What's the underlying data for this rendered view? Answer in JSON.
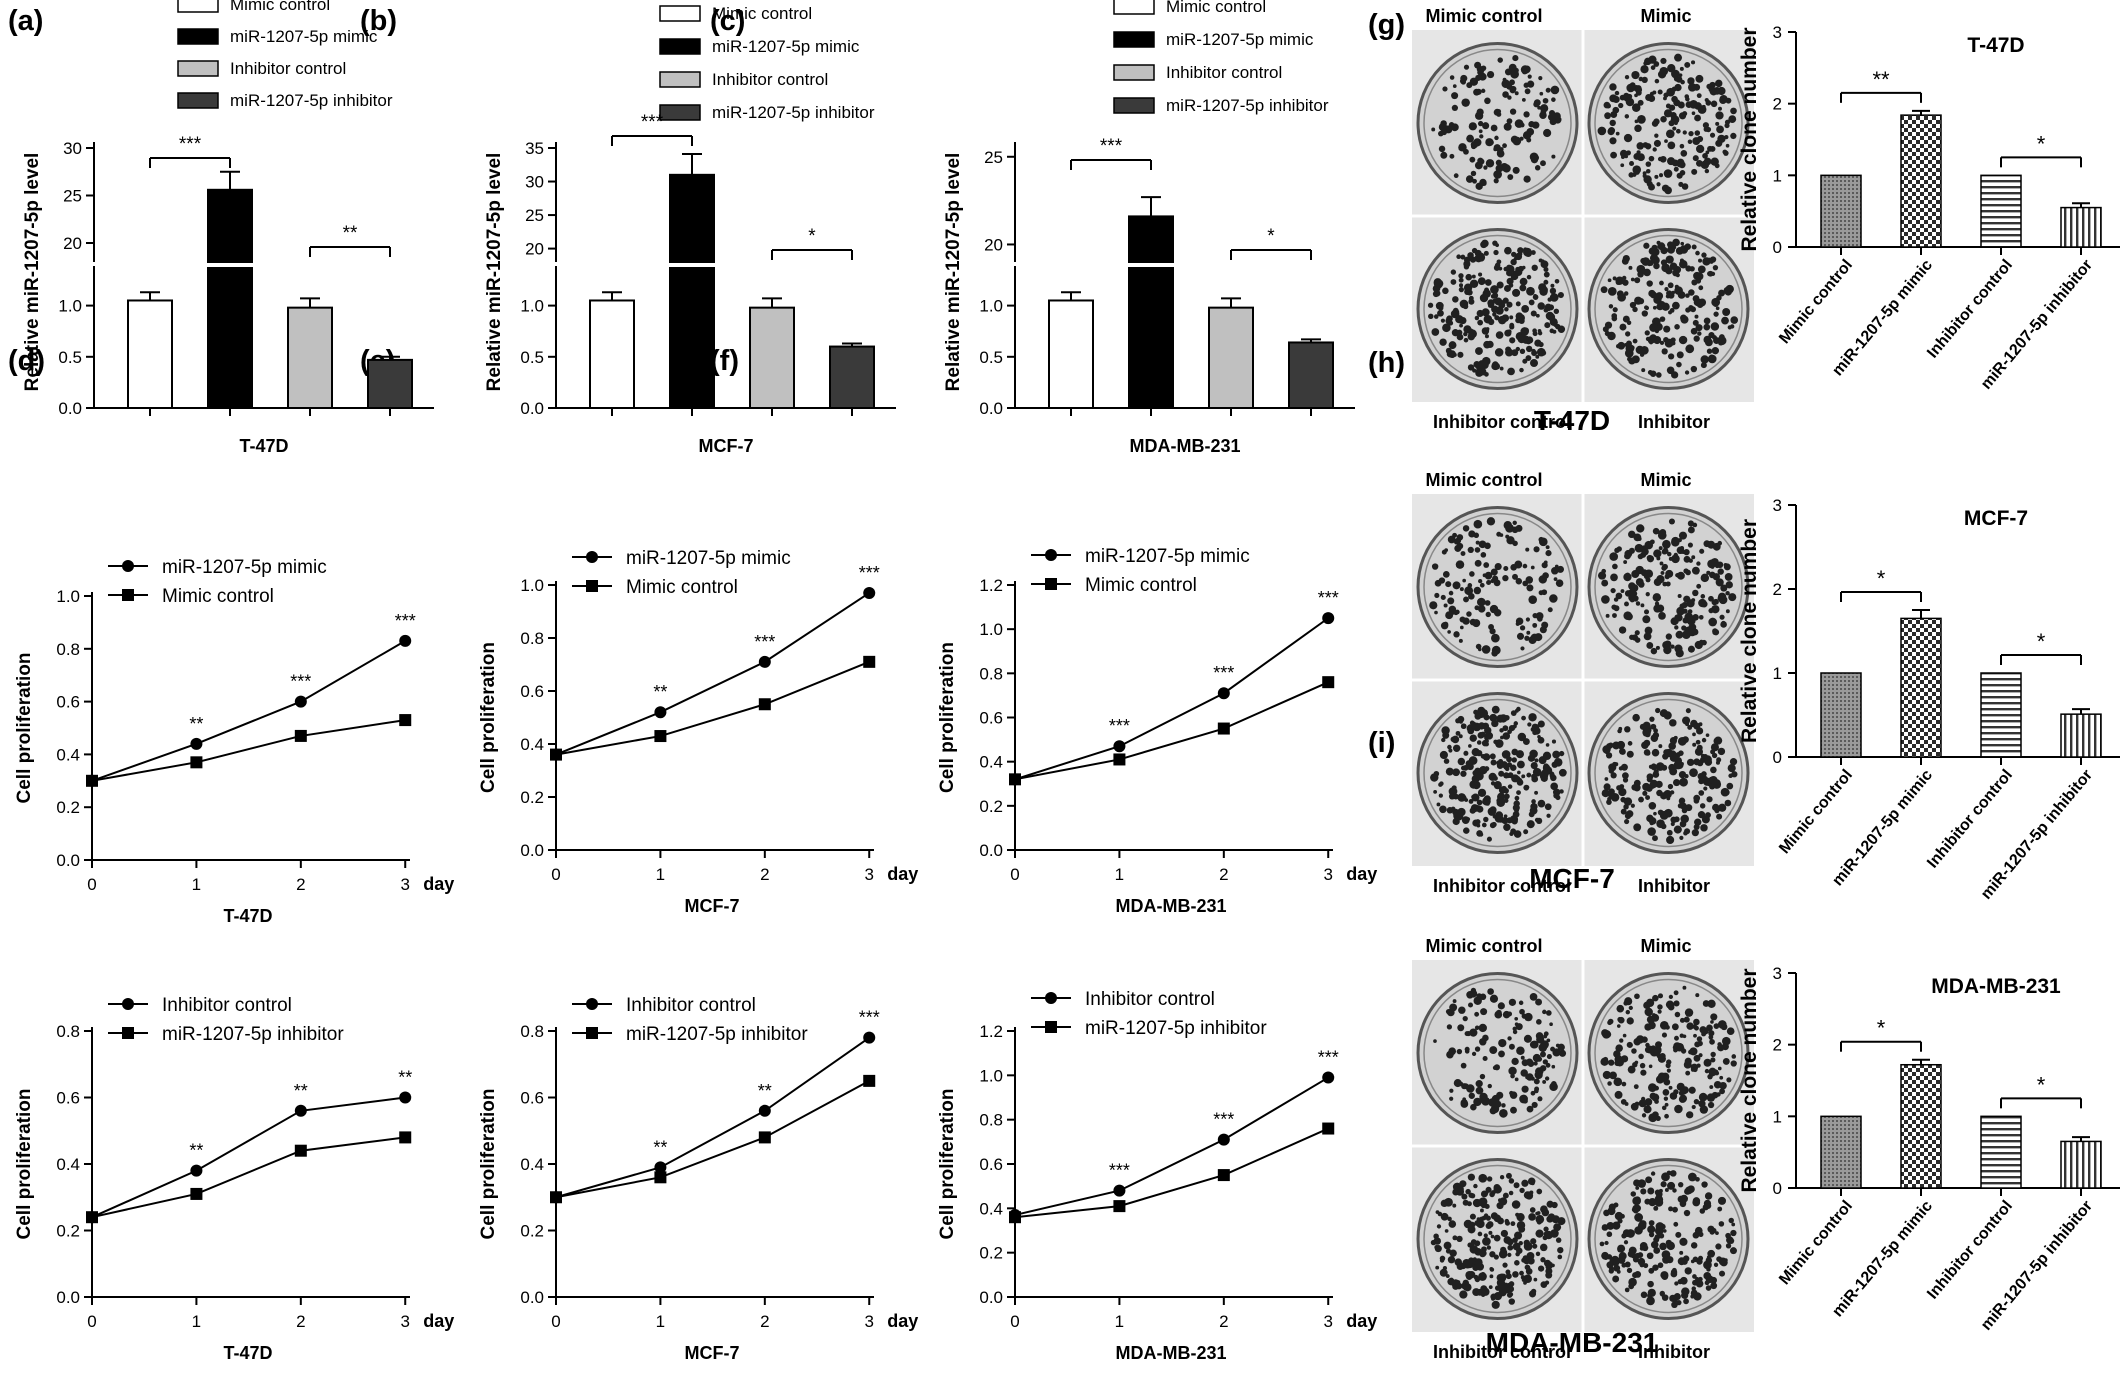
{
  "figure": {
    "panel_labels": [
      "(a)",
      "(b)",
      "(c)",
      "(d)",
      "(e)",
      "(f)",
      "(g)",
      "(h)",
      "(i)"
    ],
    "day_label": "day",
    "bar_legend": [
      "Mimic control",
      "miR-1207-5p mimic",
      "Inhibitor control",
      "miR-1207-5p inhibitor"
    ],
    "plate_labels": {
      "mimic_control": "Mimic control",
      "mimic": "Mimic",
      "inhibitor_control": "Inhibitor control",
      "inhibitor": "Inhibitor"
    },
    "colony_cell_lines": [
      "T-47D",
      "MCF-7",
      "MDA-MB-231"
    ],
    "colors": {
      "mimic_control": "#ffffff",
      "mimic": "#000000",
      "inhibitor_control": "#c0c0c0",
      "inhibitor": "#3a3a3a",
      "plate_bg": "#d2d2d2",
      "colony": "#202020"
    }
  },
  "chart_data": [
    {
      "panel": "(a)",
      "type": "bar",
      "categories": [
        "Mimic control",
        "miR-1207-5p mimic",
        "Inhibitor control",
        "miR-1207-5p inhibitor"
      ],
      "values": [
        1.05,
        25.6,
        0.98,
        0.47
      ],
      "errors": [
        0.08,
        1.9,
        0.09,
        0.03
      ],
      "xlabel": "T-47D",
      "ylabel": "Relative miR-1207-5p level",
      "y_axis_broken": true,
      "y_lower_ticks": [
        "0.0",
        "0.5",
        "1.0"
      ],
      "y_lower_range": [
        0,
        1.25
      ],
      "y_upper_ticks": [
        "20",
        "25",
        "30"
      ],
      "y_upper_range": [
        18,
        30
      ],
      "significance": [
        {
          "between": [
            0,
            1
          ],
          "label": "***"
        },
        {
          "between": [
            2,
            3
          ],
          "label": "**"
        }
      ]
    },
    {
      "panel": "(b)",
      "type": "bar",
      "categories": [
        "Mimic control",
        "miR-1207-5p mimic",
        "Inhibitor control",
        "miR-1207-5p inhibitor"
      ],
      "values": [
        1.05,
        31.0,
        0.98,
        0.6
      ],
      "errors": [
        0.08,
        3.1,
        0.09,
        0.03
      ],
      "xlabel": "MCF-7",
      "ylabel": "Relative miR-1207-5p level",
      "y_axis_broken": true,
      "y_lower_ticks": [
        "0.0",
        "0.5",
        "1.0"
      ],
      "y_lower_range": [
        0,
        1.25
      ],
      "y_upper_ticks": [
        "20",
        "25",
        "30",
        "35"
      ],
      "y_upper_range": [
        18,
        35
      ],
      "significance": [
        {
          "between": [
            0,
            1
          ],
          "label": "***"
        },
        {
          "between": [
            2,
            3
          ],
          "label": "*"
        }
      ]
    },
    {
      "panel": "(c)",
      "type": "bar",
      "categories": [
        "Mimic control",
        "miR-1207-5p mimic",
        "Inhibitor control",
        "miR-1207-5p inhibitor"
      ],
      "values": [
        1.05,
        21.6,
        0.98,
        0.64
      ],
      "errors": [
        0.08,
        1.1,
        0.09,
        0.03
      ],
      "xlabel": "MDA-MB-231",
      "ylabel": "Relative miR-1207-5p level",
      "y_axis_broken": true,
      "y_lower_ticks": [
        "0.0",
        "0.5",
        "1.0"
      ],
      "y_lower_range": [
        0,
        1.25
      ],
      "y_upper_ticks": [
        "20",
        "25"
      ],
      "y_upper_range": [
        19,
        25.5
      ],
      "significance": [
        {
          "between": [
            0,
            1
          ],
          "label": "***"
        },
        {
          "between": [
            2,
            3
          ],
          "label": "*"
        }
      ]
    },
    {
      "panel": "(d)",
      "type": "line",
      "x": [
        0,
        1,
        2,
        3
      ],
      "xlabel": "T-47D",
      "ylabel": "Cell proliferation",
      "ylim": [
        0,
        1.0
      ],
      "yticks": [
        "0.0",
        "0.2",
        "0.4",
        "0.6",
        "0.8",
        "1.0"
      ],
      "series": [
        {
          "name": "miR-1207-5p mimic",
          "marker": "circle",
          "values": [
            0.3,
            0.44,
            0.6,
            0.83
          ]
        },
        {
          "name": "Mimic control",
          "marker": "square",
          "values": [
            0.3,
            0.37,
            0.47,
            0.53
          ]
        }
      ],
      "significance": [
        "",
        "**",
        "***",
        "***"
      ]
    },
    {
      "panel": "(e)",
      "type": "line",
      "x": [
        0,
        1,
        2,
        3
      ],
      "xlabel": "MCF-7",
      "ylabel": "Cell proliferation",
      "ylim": [
        0,
        1.0
      ],
      "yticks": [
        "0.0",
        "0.2",
        "0.4",
        "0.6",
        "0.8",
        "1.0"
      ],
      "series": [
        {
          "name": "miR-1207-5p mimic",
          "marker": "circle",
          "values": [
            0.36,
            0.52,
            0.71,
            0.97
          ]
        },
        {
          "name": "Mimic control",
          "marker": "square",
          "values": [
            0.36,
            0.43,
            0.55,
            0.71
          ]
        }
      ],
      "significance": [
        "",
        "**",
        "***",
        "***"
      ]
    },
    {
      "panel": "(f)",
      "type": "line",
      "x": [
        0,
        1,
        2,
        3
      ],
      "xlabel": "MDA-MB-231",
      "ylabel": "Cell proliferation",
      "ylim": [
        0,
        1.2
      ],
      "yticks": [
        "0.0",
        "0.2",
        "0.4",
        "0.6",
        "0.8",
        "1.0",
        "1.2"
      ],
      "series": [
        {
          "name": "miR-1207-5p mimic",
          "marker": "circle",
          "values": [
            0.32,
            0.47,
            0.71,
            1.05
          ]
        },
        {
          "name": "Mimic control",
          "marker": "square",
          "values": [
            0.32,
            0.41,
            0.55,
            0.76
          ]
        }
      ],
      "significance": [
        "",
        "***",
        "***",
        "***"
      ]
    },
    {
      "panel": "(d)-inhibitor",
      "type": "line",
      "x": [
        0,
        1,
        2,
        3
      ],
      "xlabel": "T-47D",
      "ylabel": "Cell proliferation",
      "ylim": [
        0,
        0.8
      ],
      "yticks": [
        "0.0",
        "0.2",
        "0.4",
        "0.6",
        "0.8"
      ],
      "series": [
        {
          "name": "Inhibitor control",
          "marker": "circle",
          "values": [
            0.24,
            0.38,
            0.56,
            0.6
          ]
        },
        {
          "name": "miR-1207-5p inhibitor",
          "marker": "square",
          "values": [
            0.24,
            0.31,
            0.44,
            0.48
          ]
        }
      ],
      "significance": [
        "",
        "**",
        "**",
        "**"
      ]
    },
    {
      "panel": "(e)-inhibitor",
      "type": "line",
      "x": [
        0,
        1,
        2,
        3
      ],
      "xlabel": "MCF-7",
      "ylabel": "Cell proliferation",
      "ylim": [
        0,
        0.8
      ],
      "yticks": [
        "0.0",
        "0.2",
        "0.4",
        "0.6",
        "0.8"
      ],
      "series": [
        {
          "name": "Inhibitor control",
          "marker": "circle",
          "values": [
            0.3,
            0.39,
            0.56,
            0.78
          ]
        },
        {
          "name": "miR-1207-5p inhibitor",
          "marker": "square",
          "values": [
            0.3,
            0.36,
            0.48,
            0.65
          ]
        }
      ],
      "significance": [
        "",
        "**",
        "**",
        "***"
      ]
    },
    {
      "panel": "(f)-inhibitor",
      "type": "line",
      "x": [
        0,
        1,
        2,
        3
      ],
      "xlabel": "MDA-MB-231",
      "ylabel": "Cell proliferation",
      "ylim": [
        0,
        1.2
      ],
      "yticks": [
        "0.0",
        "0.2",
        "0.4",
        "0.6",
        "0.8",
        "1.0",
        "1.2"
      ],
      "series": [
        {
          "name": "Inhibitor control",
          "marker": "circle",
          "values": [
            0.37,
            0.48,
            0.71,
            0.99
          ]
        },
        {
          "name": "miR-1207-5p inhibitor",
          "marker": "square",
          "values": [
            0.36,
            0.41,
            0.55,
            0.76
          ]
        }
      ],
      "significance": [
        "",
        "***",
        "***",
        "***"
      ]
    },
    {
      "panel": "(g)",
      "type": "bar",
      "title": "T-47D",
      "categories": [
        "Mimic control",
        "miR-1207-5p mimic",
        "Inhibitor control",
        "miR-1207-5p inhibitor"
      ],
      "values": [
        1.0,
        1.84,
        1.0,
        0.55
      ],
      "errors": [
        0,
        0.06,
        0,
        0.06
      ],
      "ylabel": "Relative clone number",
      "ylim": [
        0,
        3
      ],
      "yticks": [
        "0",
        "1",
        "2",
        "3"
      ],
      "significance": [
        {
          "between": [
            0,
            1
          ],
          "label": "**"
        },
        {
          "between": [
            2,
            3
          ],
          "label": "*"
        }
      ]
    },
    {
      "panel": "(h)",
      "type": "bar",
      "title": "MCF-7",
      "categories": [
        "Mimic control",
        "miR-1207-5p mimic",
        "Inhibitor control",
        "miR-1207-5p inhibitor"
      ],
      "values": [
        1.0,
        1.65,
        1.0,
        0.51
      ],
      "errors": [
        0,
        0.1,
        0,
        0.06
      ],
      "ylabel": "Relative clone number",
      "ylim": [
        0,
        3
      ],
      "yticks": [
        "0",
        "1",
        "2",
        "3"
      ],
      "significance": [
        {
          "between": [
            0,
            1
          ],
          "label": "*"
        },
        {
          "between": [
            2,
            3
          ],
          "label": "*"
        }
      ]
    },
    {
      "panel": "(i)",
      "type": "bar",
      "title": "MDA-MB-231",
      "categories": [
        "Mimic control",
        "miR-1207-5p mimic",
        "Inhibitor control",
        "miR-1207-5p inhibitor"
      ],
      "values": [
        1.0,
        1.72,
        1.0,
        0.65
      ],
      "errors": [
        0,
        0.07,
        0,
        0.06
      ],
      "ylabel": "Relative clone number",
      "ylim": [
        0,
        3
      ],
      "yticks": [
        "0",
        "1",
        "2",
        "3"
      ],
      "significance": [
        {
          "between": [
            0,
            1
          ],
          "label": "*"
        },
        {
          "between": [
            2,
            3
          ],
          "label": "*"
        }
      ]
    }
  ]
}
